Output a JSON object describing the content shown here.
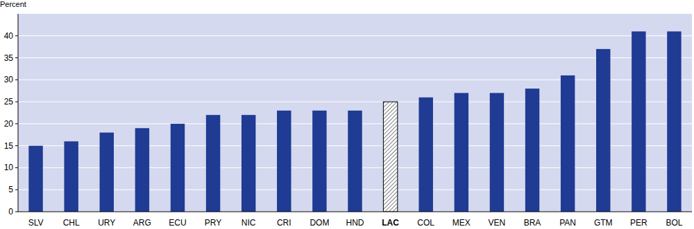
{
  "chart_data": {
    "type": "bar",
    "y_label": "Percent",
    "categories": [
      "SLV",
      "CHL",
      "URY",
      "ARG",
      "ECU",
      "PRY",
      "NIC",
      "CRI",
      "DOM",
      "HND",
      "LAC",
      "COL",
      "MEX",
      "VEN",
      "BRA",
      "PAN",
      "GTM",
      "PER",
      "BOL"
    ],
    "values": [
      15,
      16,
      18,
      19,
      20,
      22,
      22,
      23,
      23,
      23,
      25,
      26,
      27,
      27,
      28,
      31,
      37,
      41,
      41
    ],
    "color": "#1f3b93",
    "colors": [
      "#1f3b93",
      "#1f3b93",
      "#1f3b93",
      "#1f3b93",
      "#1f3b93",
      "#1f3b93",
      "#1f3b93",
      "#1f3b93",
      "#1f3b93",
      "#1f3b93",
      "#000000",
      "#1f3b93",
      "#1f3b93",
      "#1f3b93",
      "#1f3b93",
      "#1f3b93",
      "#1f3b93",
      "#1f3b93",
      "#1f3b93"
    ],
    "ylim": [
      0,
      45
    ],
    "yticks": [
      0,
      5,
      10,
      15,
      20,
      25,
      30,
      35,
      40
    ],
    "grid": true
  }
}
